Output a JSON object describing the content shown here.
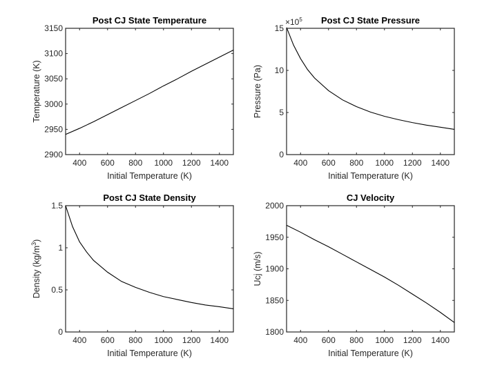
{
  "chart_data": [
    {
      "type": "line",
      "title": "Post CJ State Temperature",
      "xlabel": "Initial Temperature (K)",
      "ylabel": "Temperature (K)",
      "xlim": [
        300,
        1500
      ],
      "ylim": [
        2900,
        3150
      ],
      "xticks": [
        400,
        600,
        800,
        1000,
        1200,
        1400
      ],
      "yticks": [
        2900,
        2950,
        3000,
        3050,
        3100,
        3150
      ],
      "ytick_labels": [
        "2900",
        "2950",
        "3000",
        "3050",
        "3100",
        "3150"
      ],
      "grid": false,
      "x": [
        300,
        400,
        500,
        600,
        700,
        800,
        900,
        1000,
        1100,
        1200,
        1300,
        1400,
        1500
      ],
      "y": [
        2940,
        2952,
        2965,
        2979,
        2993,
        3007,
        3021,
        3036,
        3050,
        3065,
        3079,
        3093,
        3107
      ]
    },
    {
      "type": "line",
      "title": "Post CJ State Pressure",
      "xlabel": "Initial Temperature (K)",
      "ylabel": "Pressure (Pa)",
      "exponent_label": "×10",
      "exponent_power": "5",
      "xlim": [
        300,
        1500
      ],
      "ylim": [
        0,
        1500000
      ],
      "xticks": [
        400,
        600,
        800,
        1000,
        1200,
        1400
      ],
      "yticks": [
        0,
        500000,
        1000000,
        1500000
      ],
      "ytick_labels": [
        "0",
        "5",
        "10",
        "15"
      ],
      "grid": false,
      "x": [
        300,
        350,
        400,
        450,
        500,
        600,
        700,
        800,
        900,
        1000,
        1100,
        1200,
        1300,
        1400,
        1500
      ],
      "y": [
        1510000,
        1300000,
        1140000,
        1010000,
        910000,
        760000,
        650000,
        570000,
        505000,
        455000,
        415000,
        380000,
        350000,
        325000,
        300000
      ]
    },
    {
      "type": "line",
      "title": "Post CJ State Density",
      "xlabel": "Initial Temperature (K)",
      "ylabel": "Density (kg/m",
      "ylabel_sup": "3",
      "ylabel_end": ")",
      "xlim": [
        300,
        1500
      ],
      "ylim": [
        0,
        1.5
      ],
      "xticks": [
        400,
        600,
        800,
        1000,
        1200,
        1400
      ],
      "yticks": [
        0,
        0.5,
        1,
        1.5
      ],
      "ytick_labels": [
        "0",
        "0.5",
        "1",
        "1.5"
      ],
      "grid": false,
      "x": [
        300,
        350,
        400,
        450,
        500,
        600,
        700,
        800,
        900,
        1000,
        1100,
        1200,
        1300,
        1400,
        1500
      ],
      "y": [
        1.5,
        1.25,
        1.07,
        0.95,
        0.85,
        0.71,
        0.6,
        0.53,
        0.47,
        0.42,
        0.385,
        0.35,
        0.32,
        0.3,
        0.275
      ]
    },
    {
      "type": "line",
      "title": "CJ Velocity",
      "xlabel": "Initial Temperature (K)",
      "ylabel": "Ucj (m/s)",
      "xlim": [
        300,
        1500
      ],
      "ylim": [
        1800,
        2000
      ],
      "xticks": [
        400,
        600,
        800,
        1000,
        1200,
        1400
      ],
      "yticks": [
        1800,
        1850,
        1900,
        1950,
        2000
      ],
      "ytick_labels": [
        "1800",
        "1850",
        "1900",
        "1950",
        "2000"
      ],
      "grid": false,
      "x": [
        300,
        400,
        500,
        600,
        700,
        800,
        900,
        1000,
        1100,
        1200,
        1300,
        1400,
        1500
      ],
      "y": [
        1969,
        1958,
        1946,
        1935,
        1923,
        1911,
        1899,
        1887,
        1874,
        1860,
        1846,
        1831,
        1815
      ]
    }
  ]
}
